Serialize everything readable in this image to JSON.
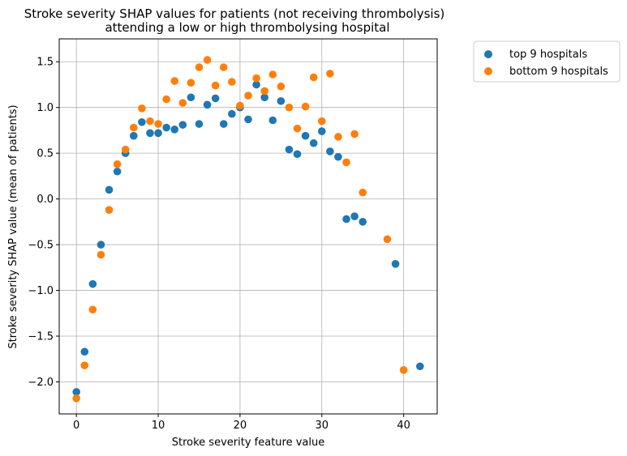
{
  "chart_data": {
    "type": "scatter",
    "title": "Stroke severity SHAP values for patients (not receiving thrombolysis)",
    "subtitle": "attending a low or high thrombolysing hospital",
    "xlabel": "Stroke severity feature value",
    "ylabel": "Stroke severity SHAP value (mean of patients)",
    "xlim": [
      -2.1,
      44.1
    ],
    "ylim": [
      -2.35,
      1.75
    ],
    "xticks": [
      0,
      10,
      20,
      30,
      40
    ],
    "xtick_labels": [
      "0",
      "10",
      "20",
      "30",
      "40"
    ],
    "yticks": [
      -2.0,
      -1.5,
      -1.0,
      -0.5,
      0.0,
      0.5,
      1.0,
      1.5
    ],
    "ytick_labels": [
      "−2.0",
      "−1.5",
      "−1.0",
      "−0.5",
      "0.0",
      "0.5",
      "1.0",
      "1.5"
    ],
    "grid": true,
    "legend_position": "outside-upper-right",
    "series": [
      {
        "name": "top 9 hospitals",
        "color": "#1f77b4",
        "x": [
          0,
          1,
          2,
          3,
          4,
          5,
          6,
          7,
          8,
          9,
          10,
          11,
          12,
          13,
          14,
          15,
          16,
          17,
          18,
          19,
          20,
          21,
          22,
          23,
          24,
          25,
          26,
          27,
          28,
          29,
          30,
          31,
          32,
          33,
          34,
          35,
          39,
          42
        ],
        "y": [
          -2.11,
          -1.67,
          -0.93,
          -0.5,
          0.1,
          0.3,
          0.5,
          0.69,
          0.84,
          0.72,
          0.72,
          0.78,
          0.76,
          0.81,
          1.11,
          0.82,
          1.03,
          1.1,
          0.82,
          0.93,
          1.0,
          0.87,
          1.25,
          1.11,
          0.86,
          1.07,
          0.54,
          0.49,
          0.69,
          0.61,
          0.74,
          0.52,
          0.46,
          -0.22,
          -0.19,
          -0.25,
          -0.71,
          -1.83
        ]
      },
      {
        "name": "bottom 9 hospitals",
        "color": "#ff7f0e",
        "x": [
          0,
          1,
          2,
          3,
          4,
          5,
          6,
          7,
          8,
          9,
          10,
          11,
          12,
          13,
          14,
          15,
          16,
          17,
          18,
          19,
          20,
          21,
          22,
          23,
          24,
          25,
          26,
          27,
          28,
          29,
          30,
          31,
          32,
          33,
          34,
          35,
          38,
          40
        ],
        "y": [
          -2.18,
          -1.82,
          -1.21,
          -0.61,
          -0.12,
          0.38,
          0.54,
          0.78,
          0.99,
          0.85,
          0.82,
          1.09,
          1.29,
          1.05,
          1.27,
          1.44,
          1.52,
          1.24,
          1.44,
          1.28,
          1.02,
          1.13,
          1.32,
          1.18,
          1.36,
          1.23,
          1.0,
          0.77,
          1.01,
          1.33,
          0.85,
          1.37,
          0.68,
          0.4,
          0.71,
          0.07,
          -0.44,
          -1.87
        ]
      }
    ]
  }
}
